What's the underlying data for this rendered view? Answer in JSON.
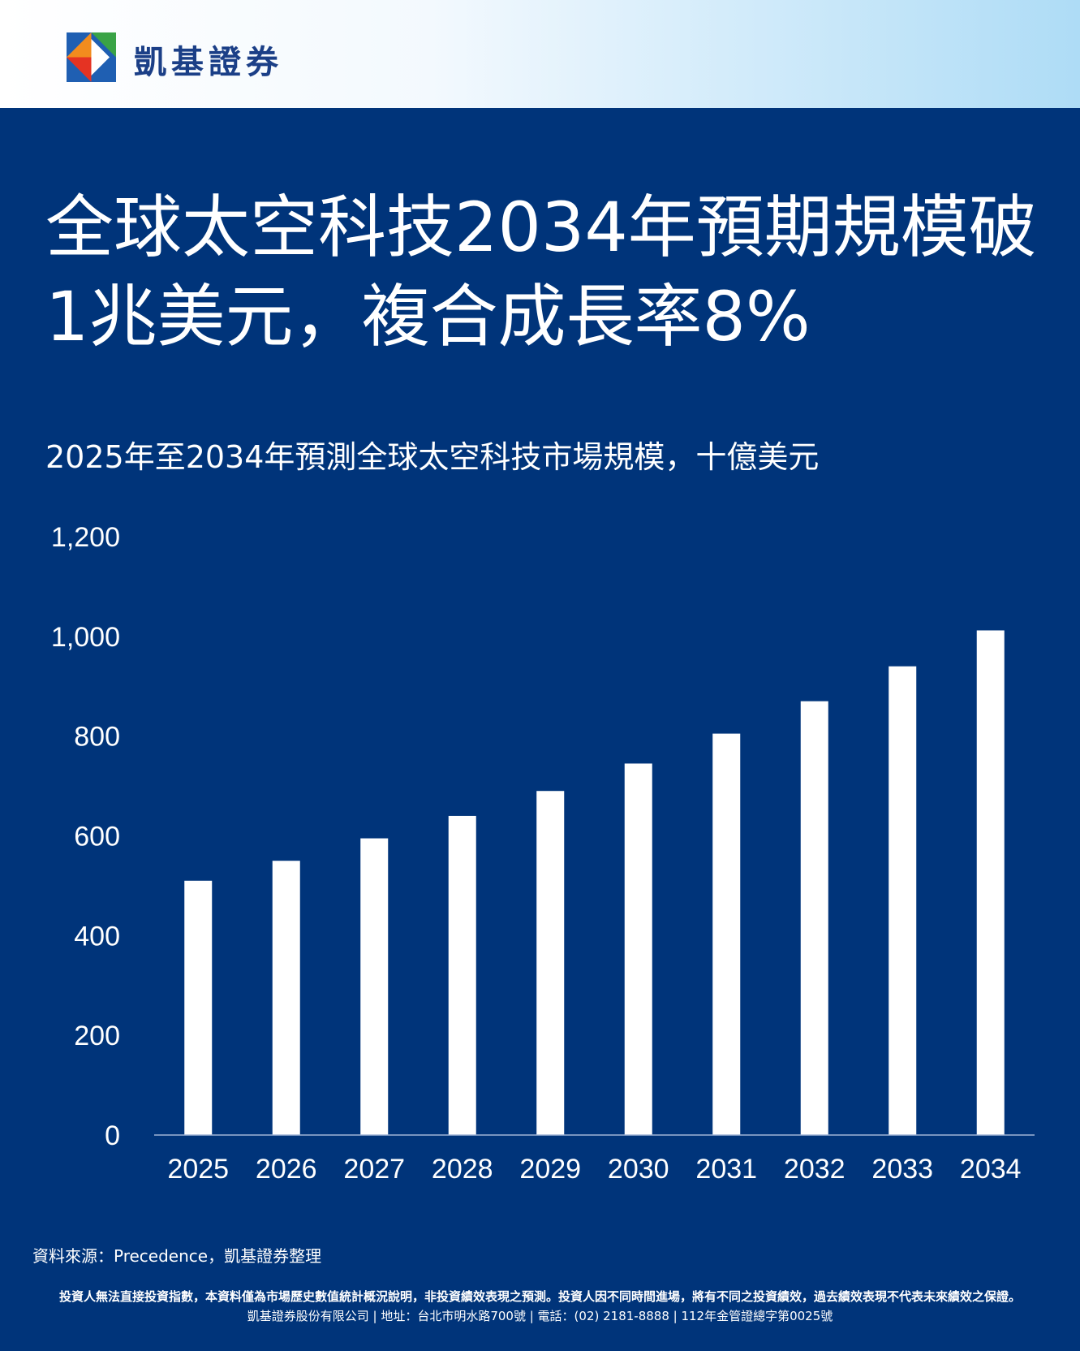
{
  "brand": {
    "name": "凱基證券",
    "colors": {
      "orange": "#f28c1e",
      "red": "#e53323",
      "green": "#3aa346",
      "blue": "#1f5fb2",
      "white": "#ffffff"
    }
  },
  "title_lines": [
    "全球太空科技2034年預期規模破",
    "1兆美元，複合成長率8%"
  ],
  "chart_data": {
    "type": "bar",
    "title": "2025年至2034年預測全球太空科技市場規模，十億美元",
    "categories": [
      "2025",
      "2026",
      "2027",
      "2028",
      "2029",
      "2030",
      "2031",
      "2032",
      "2033",
      "2034"
    ],
    "values": [
      510,
      550,
      595,
      640,
      690,
      745,
      805,
      870,
      940,
      1012
    ],
    "yticks": [
      "0",
      "200",
      "400",
      "600",
      "800",
      "1,000",
      "1,200"
    ],
    "ylim": [
      0,
      1200
    ],
    "grid": false,
    "bar_color": "#ffffff"
  },
  "source": "資料來源：Precedence，凱基證券整理",
  "disclaimer": "投資人無法直接投資指數，本資料僅為市場歷史數值統計概況說明，非投資績效表現之預測。投資人因不同時間進場，將有不同之投資績效，過去績效表現不代表未來績效之保證。",
  "company_info": "凱基證券股份有限公司 | 地址：台北市明水路700號 | 電話：(02) 2181-8888 | 112年金管證總字第0025號"
}
